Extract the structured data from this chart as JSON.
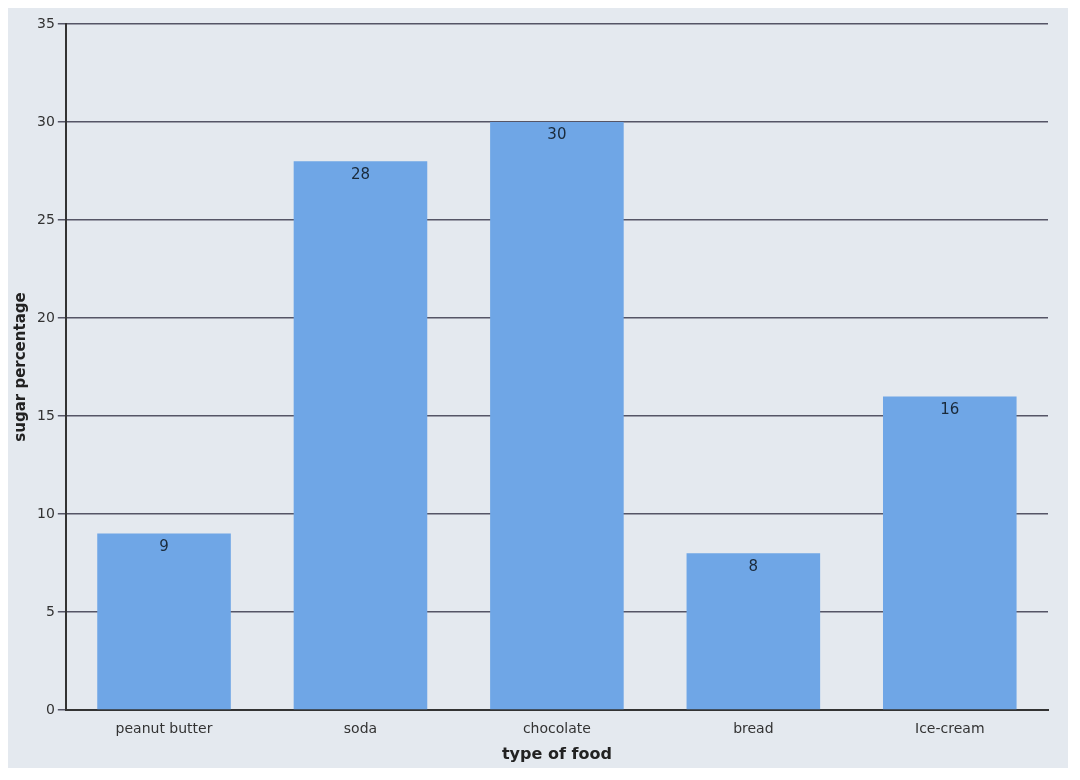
{
  "chart_data": {
    "type": "bar",
    "xlabel": "type of food",
    "ylabel": "sugar percentage",
    "categories": [
      "peanut butter",
      "soda",
      "chocolate",
      "bread",
      "Ice-cream"
    ],
    "values": [
      9,
      28,
      30,
      8,
      16
    ],
    "color": "#6fa6e6",
    "ylim": [
      0,
      35
    ],
    "yticks": [
      0,
      5,
      10,
      15,
      20,
      25,
      30,
      35
    ],
    "grid": "y",
    "data_labels": true,
    "legend": false
  }
}
